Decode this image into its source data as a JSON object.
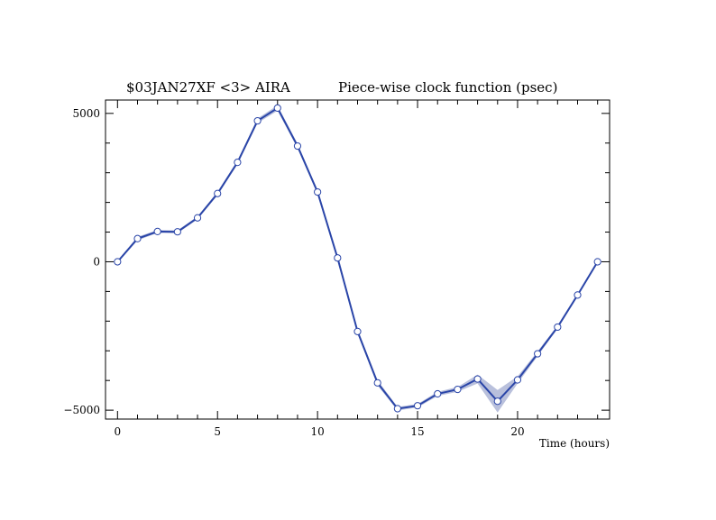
{
  "chart_data": {
    "type": "line",
    "title_left": "$03JAN27XF <3>  AIRA",
    "title_right": "Piece-wise clock function (psec)",
    "xlabel": "Time (hours)",
    "ylabel": "",
    "xlim": [
      -0.6,
      24.6
    ],
    "ylim": [
      -5300,
      5450
    ],
    "x_ticks": [
      0,
      5,
      10,
      15,
      20
    ],
    "y_ticks": [
      -5000,
      0,
      5000
    ],
    "x_minor_step": 1,
    "y_minor_step": 1000,
    "grid": false,
    "colors": {
      "line": "#2a45a8",
      "band": "#b9c0dc",
      "marker_fill": "#ffffff"
    },
    "x": [
      0,
      1,
      2,
      3,
      4,
      5,
      6,
      7,
      8,
      9,
      10,
      11,
      12,
      13,
      14,
      15,
      16,
      17,
      18,
      19,
      20,
      21,
      22,
      23,
      24
    ],
    "y": [
      0,
      780,
      1020,
      1010,
      1480,
      2300,
      3350,
      4750,
      5180,
      3900,
      2350,
      130,
      -2350,
      -4080,
      -4950,
      -4850,
      -4450,
      -4300,
      -3950,
      -4700,
      -3980,
      -3100,
      -2200,
      -1120,
      0
    ],
    "uncertainty": [
      30,
      60,
      50,
      50,
      50,
      60,
      70,
      80,
      90,
      80,
      70,
      70,
      80,
      90,
      60,
      60,
      70,
      80,
      150,
      380,
      120,
      80,
      60,
      50,
      30
    ]
  }
}
